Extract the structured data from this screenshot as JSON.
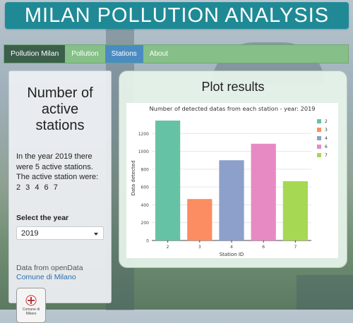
{
  "header": {
    "title": "MILAN POLLUTION ANALYSIS"
  },
  "navbar": {
    "brand": "Pollution Milan",
    "items": [
      "Pollution",
      "Stations",
      "About"
    ],
    "active": "Stations"
  },
  "sidebar": {
    "title": "Number of active stations",
    "description": "In the year 2019 there were 5 active stations. The active station were:",
    "stations_list": "2 3 4 6 7",
    "select_label": "Select the year",
    "selected_year": "2019",
    "data_from": "Data from openData",
    "data_link": "Comune di Milano",
    "logo_text": "Comune di Milano"
  },
  "main": {
    "title": "Plot results"
  },
  "chart_data": {
    "type": "bar",
    "title": "Number of detected datas from each station - year: 2019",
    "xlabel": "Station ID",
    "ylabel": "Data detected",
    "categories": [
      "2",
      "3",
      "4",
      "6",
      "7"
    ],
    "values": [
      1345,
      465,
      900,
      1085,
      665
    ],
    "colors": [
      "#66c2a5",
      "#fc8d62",
      "#8da0cb",
      "#e78ac3",
      "#a6d854"
    ],
    "ylim": [
      0,
      1400
    ],
    "yticks": [
      0,
      200,
      400,
      600,
      800,
      1000,
      1200
    ],
    "legend": [
      "2",
      "3",
      "4",
      "6",
      "7"
    ],
    "legend_position": "right",
    "grid": true
  }
}
